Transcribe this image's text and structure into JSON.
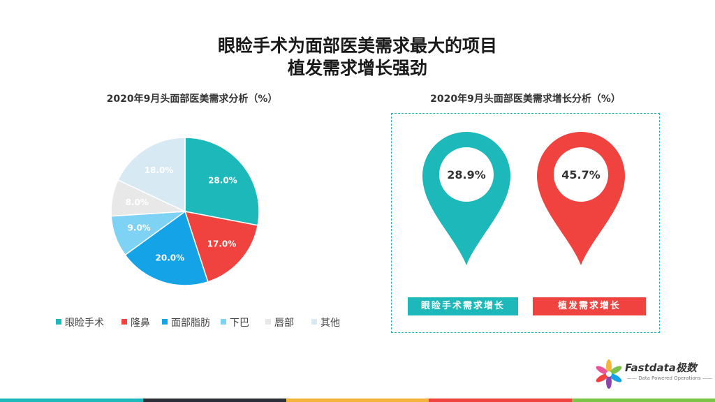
{
  "header": {
    "title_line1": "眼睑手术为面部医美需求最大的项目",
    "title_line2": "植发需求增长强劲"
  },
  "pie_subtitle": "2020年9月头面部医美需求分析（%）",
  "growth_subtitle": "2020年9月头面部医美需求增长分析（%）",
  "colors": {
    "teal": "#1cb8ba",
    "red": "#f0423f",
    "blue": "#14a3e6",
    "lightblue": "#7ed2f4",
    "lightgray": "#e8e8e8",
    "paleblue": "#d7e9f3"
  },
  "chart_data": [
    {
      "type": "pie",
      "title": "2020年9月头面部医美需求分析（%）",
      "categories": [
        "眼睑手术",
        "隆鼻",
        "面部脂肪",
        "下巴",
        "唇部",
        "其他"
      ],
      "values": [
        28.0,
        17.0,
        20.0,
        9.0,
        8.0,
        18.0
      ],
      "labels": [
        "28.0%",
        "17.0%",
        "20.0%",
        "9.0%",
        "8.0%",
        "18.0%"
      ],
      "colors": [
        "#1cb8ba",
        "#f0423f",
        "#14a3e6",
        "#7ed2f4",
        "#e8e8e8",
        "#d7e9f3"
      ],
      "legend_position": "bottom"
    },
    {
      "type": "bar",
      "title": "2020年9月头面部医美需求增长分析（%）",
      "categories": [
        "眼睑手术需求增长",
        "植发需求增长"
      ],
      "values": [
        28.9,
        45.7
      ],
      "labels": [
        "28.9%",
        "45.7%"
      ],
      "colors": [
        "#1cb8ba",
        "#f0423f"
      ]
    }
  ],
  "logo": {
    "name": "Fastdata极数",
    "tagline": "—— Data Powered Operations ——"
  },
  "bottom_bar_colors": [
    "#1cb8ba",
    "#2b2f36",
    "#f2b43a",
    "#f0423f",
    "#7cc34a"
  ]
}
